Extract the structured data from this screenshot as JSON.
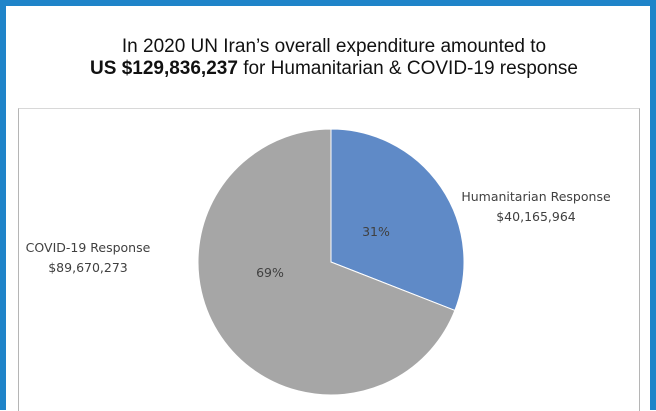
{
  "title": {
    "line1": "In 2020 UN Iran’s overall expenditure amounted to",
    "amount": "US $129,836,237",
    "line2_rest": " for Humanitarian & COVID-19 response"
  },
  "chart_data": {
    "type": "pie",
    "categories": [
      "Humanitarian Response",
      "COVID-19 Response"
    ],
    "amounts": [
      "$40,165,964",
      "$89,670,273"
    ],
    "values": [
      40165964,
      89670273
    ],
    "percent_labels": [
      "31%",
      "69%"
    ],
    "colors": [
      "#5f8ac7",
      "#a6a6a6"
    ],
    "start": "12 o'clock",
    "direction": "clockwise",
    "legend": "none"
  }
}
